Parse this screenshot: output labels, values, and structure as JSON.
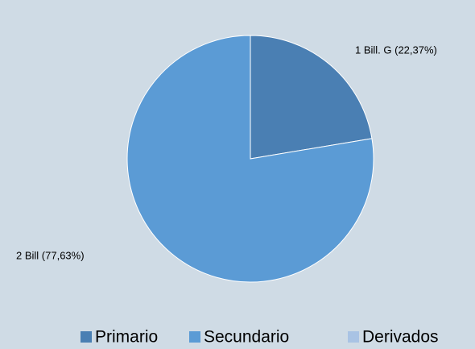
{
  "chart_data": {
    "type": "pie",
    "categories": [
      "Primario",
      "Secundario",
      "Derivados"
    ],
    "values": [
      22.37,
      77.63,
      0
    ],
    "value_labels": [
      "1 Bill. G (22,37%)",
      "2 Bill (77,63%)",
      null
    ],
    "colors": [
      "#4a7fb3",
      "#5b9bd5",
      "#a9c3e4"
    ],
    "legend": "bottom"
  }
}
